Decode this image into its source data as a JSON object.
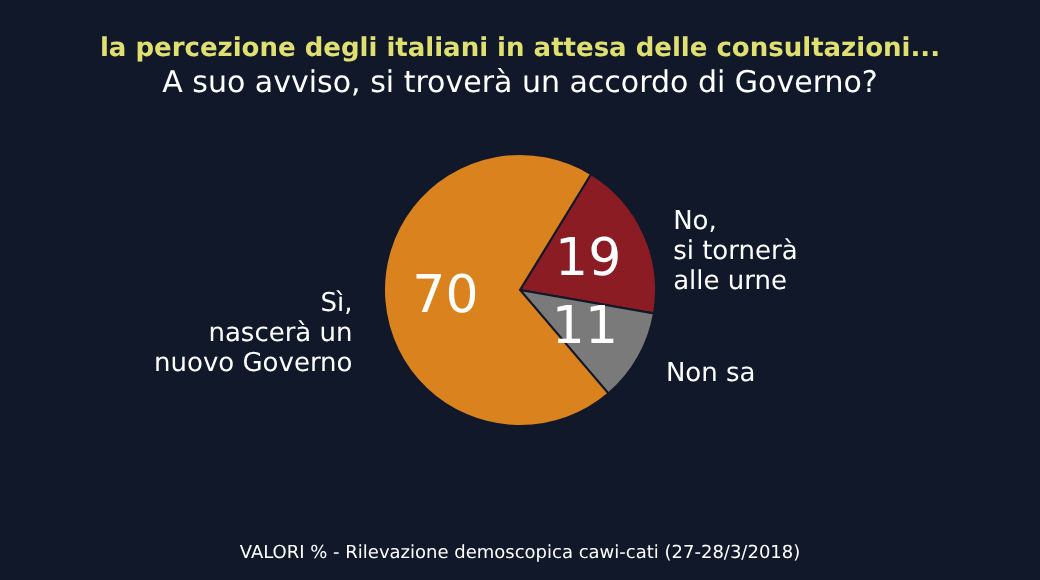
{
  "chart_data": {
    "type": "pie",
    "title": "la percezione degli italiani in attesa delle consultazioni...",
    "subtitle": "A suo avviso, si troverà un accordo di Governo?",
    "categories": [
      "No,\nsi tornerà\nalle urne",
      "Non sa",
      "Sì,\nnascerà un\nnuovo Governo"
    ],
    "values": [
      19,
      11,
      70
    ],
    "colors": [
      "#8c1c24",
      "#7a7a7a",
      "#d9821e"
    ],
    "data_labels": true,
    "annotations": [
      "VALORI % - Rilevazione demoscopica cawi-cati (27-28/3/2018)"
    ]
  }
}
